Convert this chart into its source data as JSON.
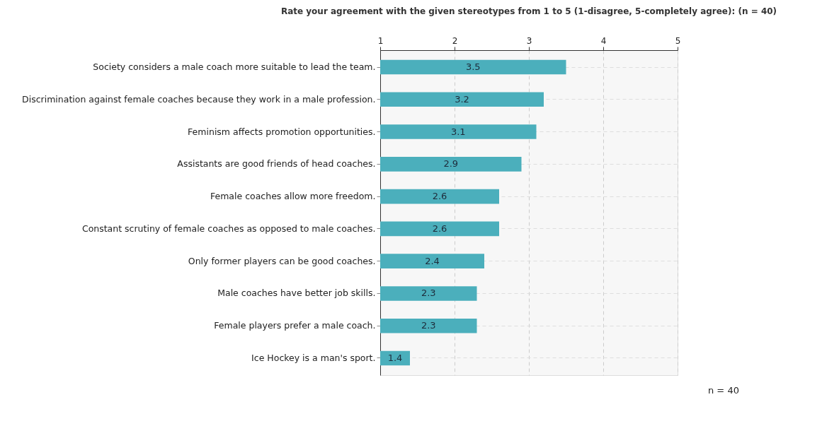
{
  "chart_data": {
    "type": "bar",
    "orientation": "horizontal",
    "title": "Rate your agreement with the given stereotypes from 1 to 5 (1-disagree, 5-completely agree): (n = 40)",
    "categories": [
      "Society considers a male coach more suitable to lead the team.",
      "Discrimination against female coaches because they work in a male profession.",
      "Feminism affects promotion opportunities.",
      "Assistants are good friends of head coaches.",
      "Female coaches allow more freedom.",
      "Constant scrutiny of female coaches as opposed to male coaches.",
      "Only former players can be good coaches.",
      "Male coaches have better job skills.",
      "Female players prefer a male coach.",
      "Ice Hockey is a man's sport."
    ],
    "values": [
      3.5,
      3.2,
      3.1,
      2.9,
      2.6,
      2.6,
      2.4,
      2.3,
      2.3,
      1.4
    ],
    "color": "#4bafbc",
    "xlim": [
      1,
      5
    ],
    "xticks": [
      1,
      2,
      3,
      4,
      5
    ],
    "grid": true,
    "data_labels": true,
    "annotations": [
      "n = 40"
    ]
  }
}
